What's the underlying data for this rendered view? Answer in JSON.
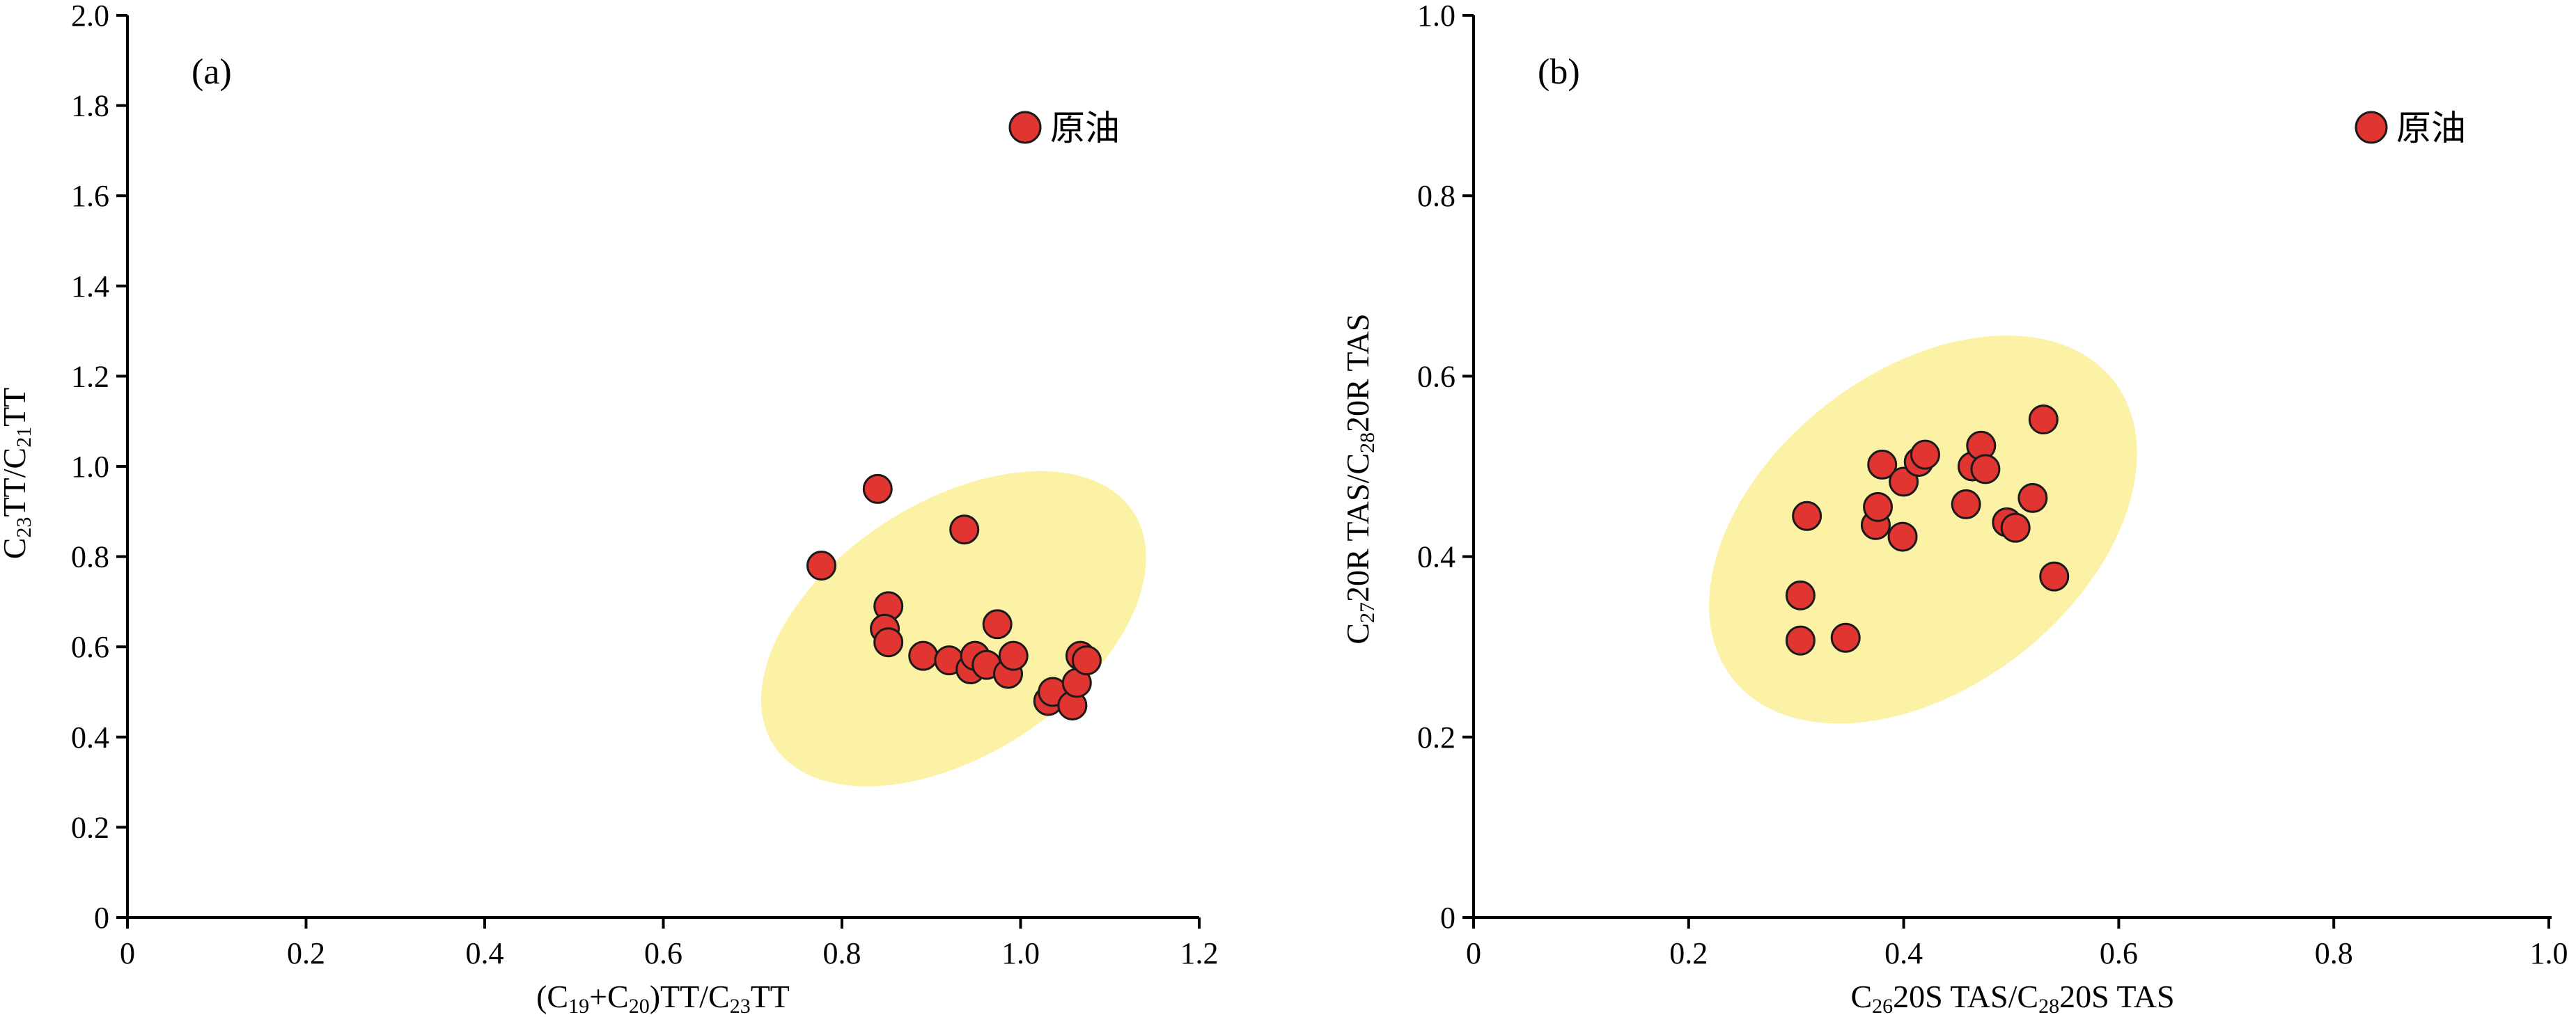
{
  "colors": {
    "point_fill": "#e03530",
    "point_stroke": "#1a1a1a",
    "ellipse_fill": "#fbf2a6",
    "axis": "#000000"
  },
  "chart_data": [
    {
      "type": "scatter",
      "panel_label": "(a)",
      "xlabel_parts": {
        "p1": "(C",
        "s1": "19",
        "p2": "+C",
        "s2": "20",
        "p3": ")TT/C",
        "s3": "23",
        "p4": "TT"
      },
      "ylabel_parts": {
        "p1": "C",
        "s1": "23",
        "p2": "TT/C",
        "s2": "21",
        "p3": "TT"
      },
      "xlim": [
        0,
        1.2
      ],
      "ylim": [
        0,
        2.0
      ],
      "x_ticks": [
        0,
        0.2,
        0.4,
        0.6,
        0.8,
        1.0,
        1.2
      ],
      "x_tick_labels": [
        "0",
        "0.2",
        "0.4",
        "0.6",
        "0.8",
        "1.0",
        "1.2"
      ],
      "y_ticks": [
        0,
        0.2,
        0.4,
        0.6,
        0.8,
        1.0,
        1.2,
        1.4,
        1.6,
        1.8,
        2.0
      ],
      "y_tick_labels": [
        "0",
        "0.2",
        "0.4",
        "0.6",
        "0.8",
        "1.0",
        "1.2",
        "1.4",
        "1.6",
        "1.8",
        "2.0"
      ],
      "legend": {
        "label": "原油",
        "position": "top-right"
      },
      "grid": false,
      "highlight_region": {
        "cx": 0.925,
        "cy": 0.64,
        "rx": 0.24,
        "ry": 0.28,
        "rotation_deg": -33
      },
      "series": [
        {
          "name": "原油",
          "x": [
            0.84,
            0.937,
            0.777,
            0.852,
            0.848,
            0.852,
            0.891,
            0.92,
            0.944,
            0.949,
            0.962,
            0.974,
            0.986,
            0.992,
            1.031,
            1.036,
            1.058,
            1.063,
            1.067,
            1.074
          ],
          "y": [
            0.95,
            0.86,
            0.78,
            0.69,
            0.64,
            0.61,
            0.58,
            0.57,
            0.55,
            0.58,
            0.56,
            0.65,
            0.54,
            0.58,
            0.48,
            0.5,
            0.47,
            0.52,
            0.58,
            0.57
          ]
        }
      ]
    },
    {
      "type": "scatter",
      "panel_label": "(b)",
      "xlabel_parts": {
        "p1": "C",
        "s1": "26",
        "p2": "20S TAS/C",
        "s2": "28",
        "p3": "20S TAS"
      },
      "ylabel_parts": {
        "p1": "C",
        "s1": "27",
        "p2": "20R TAS/C",
        "s2": "28",
        "p3": "20R TAS"
      },
      "xlim": [
        0,
        1.0
      ],
      "ylim": [
        0,
        1.0
      ],
      "x_ticks": [
        0,
        0.2,
        0.4,
        0.6,
        0.8,
        1.0
      ],
      "x_tick_labels": [
        "0",
        "0.2",
        "0.4",
        "0.6",
        "0.8",
        "1.0"
      ],
      "y_ticks": [
        0,
        0.2,
        0.4,
        0.6,
        0.8,
        1.0
      ],
      "y_tick_labels": [
        "0",
        "0.2",
        "0.4",
        "0.6",
        "0.8",
        "1.0"
      ],
      "legend": {
        "label": "原油",
        "position": "top-right"
      },
      "grid": false,
      "highlight_region": {
        "cx": 0.418,
        "cy": 0.43,
        "rx": 0.225,
        "ry": 0.175,
        "rotation_deg": -38
      },
      "series": [
        {
          "name": "原油",
          "x": [
            0.31,
            0.304,
            0.304,
            0.346,
            0.374,
            0.376,
            0.38,
            0.399,
            0.4,
            0.414,
            0.42,
            0.458,
            0.464,
            0.472,
            0.476,
            0.496,
            0.504,
            0.52,
            0.53,
            0.54
          ],
          "y": [
            0.445,
            0.357,
            0.307,
            0.31,
            0.435,
            0.455,
            0.502,
            0.422,
            0.483,
            0.505,
            0.513,
            0.458,
            0.5,
            0.523,
            0.497,
            0.438,
            0.432,
            0.465,
            0.552,
            0.378
          ]
        }
      ]
    }
  ]
}
